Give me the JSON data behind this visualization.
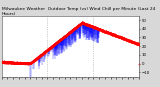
{
  "title": "Milwaukee Weather  Outdoor Temp (vs) Wind Chill per Minute (Last 24 Hours)",
  "background_color": "#d8d8d8",
  "plot_bg_color": "#ffffff",
  "n_points": 1440,
  "temp_color": "#ff0000",
  "windchill_color": "#0000ff",
  "y_min": -15,
  "y_max": 55,
  "yticks": [
    -10,
    0,
    10,
    20,
    30,
    40,
    50
  ],
  "grid_color": "#888888",
  "title_fontsize": 3.2,
  "tick_fontsize": 2.8,
  "figsize": [
    1.6,
    0.87
  ],
  "dpi": 100
}
